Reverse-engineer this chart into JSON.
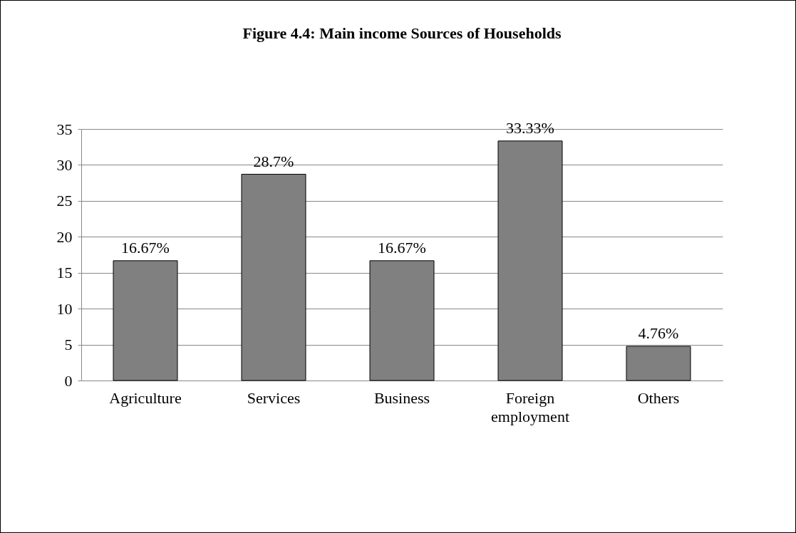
{
  "chart_data": {
    "type": "bar",
    "title": "Figure 4.4: Main income Sources of Households",
    "categories": [
      "Agriculture",
      "Services",
      "Business",
      "Foreign employment",
      "Others"
    ],
    "values": [
      16.67,
      28.7,
      16.67,
      33.33,
      4.76
    ],
    "value_labels": [
      "16.67%",
      "28.7%",
      "16.67%",
      "33.33%",
      "4.76%"
    ],
    "color": "#808080",
    "ylim": [
      0,
      35
    ],
    "yticks": [
      0,
      5,
      10,
      15,
      20,
      25,
      30,
      35
    ],
    "grid": "y"
  }
}
